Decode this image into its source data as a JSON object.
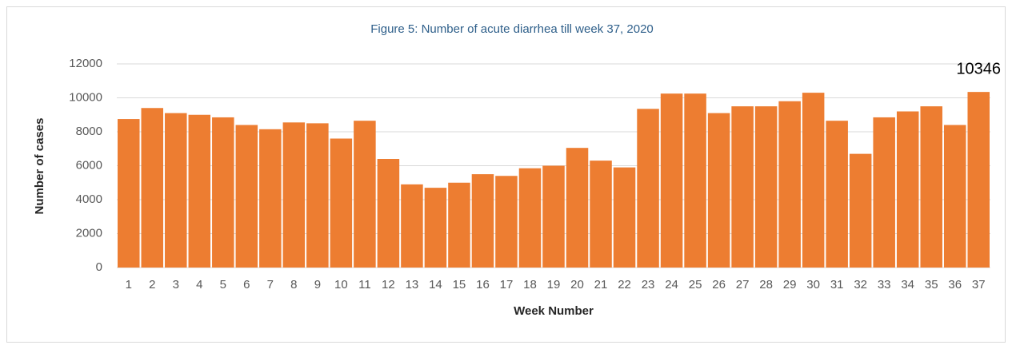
{
  "chart_data": {
    "type": "bar",
    "title": "Figure 5: Number of acute diarrhea till week 37, 2020",
    "x_label": "Week Number",
    "y_label": "Number of cases",
    "categories": [
      "1",
      "2",
      "3",
      "4",
      "5",
      "6",
      "7",
      "8",
      "9",
      "10",
      "11",
      "12",
      "13",
      "14",
      "15",
      "16",
      "17",
      "18",
      "19",
      "20",
      "21",
      "22",
      "23",
      "24",
      "25",
      "26",
      "27",
      "28",
      "29",
      "30",
      "31",
      "32",
      "33",
      "34",
      "35",
      "36",
      "37"
    ],
    "values": [
      8750,
      9400,
      9100,
      9000,
      8850,
      8400,
      8150,
      8550,
      8500,
      7600,
      8650,
      6400,
      4900,
      4700,
      5000,
      5500,
      5400,
      5850,
      6000,
      7050,
      6300,
      5900,
      9350,
      10250,
      10250,
      9100,
      9500,
      9500,
      9800,
      10300,
      8650,
      6700,
      8850,
      9200,
      9500,
      8400,
      10346
    ],
    "value_labels": [
      null,
      null,
      null,
      null,
      null,
      null,
      null,
      null,
      null,
      null,
      null,
      null,
      null,
      null,
      null,
      null,
      null,
      null,
      null,
      null,
      null,
      null,
      null,
      null,
      null,
      null,
      null,
      null,
      null,
      null,
      null,
      null,
      null,
      null,
      null,
      null,
      "10346"
    ],
    "color": "#ed7d31",
    "ylim": [
      0,
      12000
    ],
    "yticks": [
      0,
      2000,
      4000,
      6000,
      8000,
      10000,
      12000
    ],
    "grid": true
  }
}
